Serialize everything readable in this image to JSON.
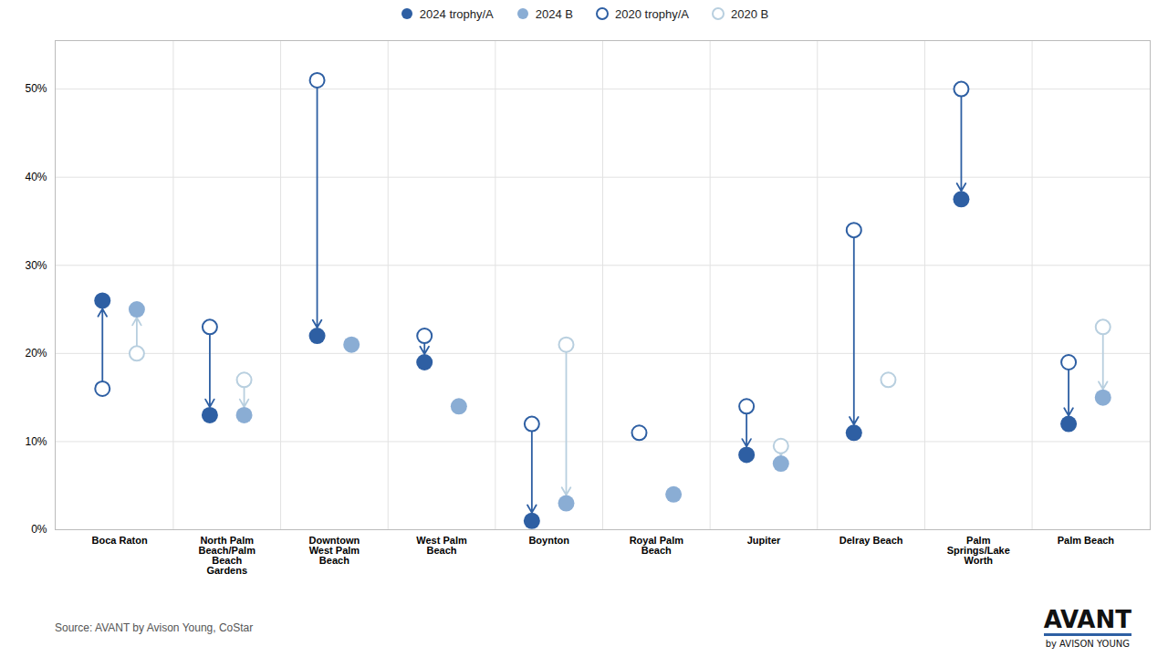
{
  "chart_data": {
    "type": "scatter",
    "categories": [
      "Boca Raton",
      "North Palm\nBeach/Palm\nBeach\nGardens",
      "Downtown\nWest Palm\nBeach",
      "West Palm\nBeach",
      "Boynton",
      "Royal Palm\nBeach",
      "Jupiter",
      "Delray Beach",
      "Palm\nSprings/Lake\nWorth",
      "Palm Beach"
    ],
    "series": [
      {
        "name": "2024 trophy/A",
        "color": "#2e5fa3",
        "marker": "filled",
        "values": [
          0.26,
          0.13,
          0.22,
          0.19,
          0.01,
          null,
          0.085,
          0.11,
          0.375,
          0.12
        ]
      },
      {
        "name": "2024 B",
        "color": "#8aadd4",
        "marker": "filled",
        "values": [
          0.25,
          0.13,
          0.21,
          0.14,
          0.03,
          0.04,
          0.075,
          null,
          null,
          0.15
        ]
      },
      {
        "name": "2020 trophy/A",
        "color": "#2e5fa3",
        "marker": "open",
        "values": [
          0.16,
          0.23,
          0.51,
          0.22,
          0.12,
          0.11,
          0.14,
          0.34,
          0.5,
          0.19
        ]
      },
      {
        "name": "2020 B",
        "color": "#b8cfdf",
        "marker": "open",
        "values": [
          0.2,
          0.17,
          null,
          null,
          0.21,
          null,
          0.095,
          0.17,
          null,
          0.23
        ]
      }
    ],
    "ylim": [
      0,
      0.555
    ],
    "yticks": [
      {
        "value": 0.0,
        "label": "0%"
      },
      {
        "value": 0.1,
        "label": "10%"
      },
      {
        "value": 0.2,
        "label": "20%"
      },
      {
        "value": 0.3,
        "label": "30%"
      },
      {
        "value": 0.4,
        "label": "40%"
      },
      {
        "value": 0.5,
        "label": "50%"
      }
    ],
    "grid": true,
    "legend": "top",
    "annotations": [
      "Source: AVANT by Avison Young, CoStar",
      "AVANT",
      "by AVISON YOUNG"
    ]
  }
}
